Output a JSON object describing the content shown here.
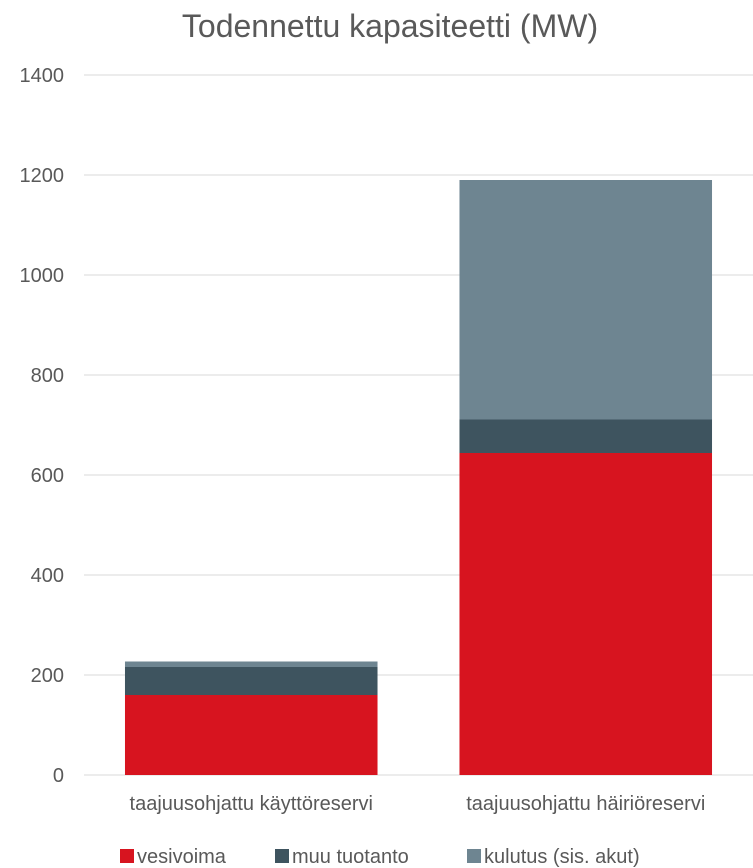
{
  "chart_data": {
    "type": "bar",
    "stacked": true,
    "title": "Todennettu kapasiteetti (MW)",
    "xlabel": "",
    "ylabel": "",
    "ylim": [
      0,
      1400
    ],
    "yticks": [
      0,
      200,
      400,
      600,
      800,
      1000,
      1200,
      1400
    ],
    "grid": true,
    "legend_position": "bottom",
    "categories": [
      "taajuusohjattu käyttöreservi",
      "taajuusohjattu häiriöreservi"
    ],
    "series": [
      {
        "name": "vesivoima",
        "color": "#d7141f",
        "values": [
          160,
          644
        ]
      },
      {
        "name": "muu tuotanto",
        "color": "#3e545f",
        "values": [
          56,
          67
        ]
      },
      {
        "name": "kulutus (sis. akut)",
        "color": "#6e8591",
        "values": [
          11,
          479
        ]
      }
    ]
  }
}
